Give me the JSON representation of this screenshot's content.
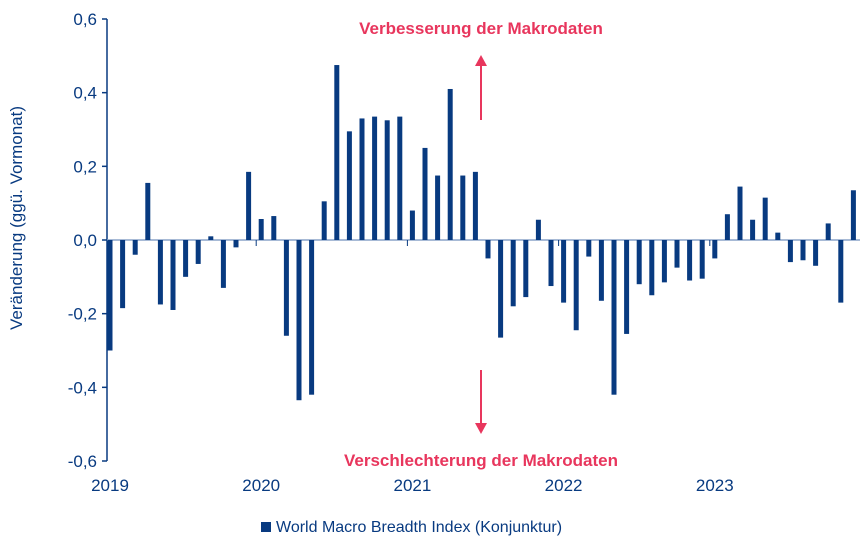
{
  "chart_data": {
    "type": "bar",
    "title": "",
    "ylabel": "Veränderung (ggü. Vormonat)",
    "xlabel": "",
    "ylim": [
      -0.6,
      0.6
    ],
    "yticks": [
      0.6,
      0.4,
      0.2,
      0.0,
      -0.2,
      -0.4,
      -0.6
    ],
    "ytick_labels": [
      "0,6",
      "0,4",
      "0,2",
      "0,0",
      "-0,2",
      "-0,4",
      "-0,6"
    ],
    "xtick_labels": [
      "2019",
      "2020",
      "2021",
      "2022",
      "2023"
    ],
    "start": "2019-01",
    "frequency": "monthly",
    "series": [
      {
        "name": "World Macro Breadth Index (Konjunktur)",
        "color": "#083a80",
        "values": [
          -0.3,
          -0.185,
          -0.04,
          0.155,
          -0.175,
          -0.19,
          -0.1,
          -0.065,
          0.01,
          -0.13,
          -0.02,
          0.185,
          0.057,
          0.065,
          -0.26,
          -0.435,
          -0.42,
          0.105,
          0.475,
          0.295,
          0.33,
          0.335,
          0.325,
          0.335,
          0.08,
          0.25,
          0.175,
          0.41,
          0.175,
          0.185,
          -0.05,
          -0.265,
          -0.18,
          -0.155,
          0.055,
          -0.125,
          -0.17,
          -0.245,
          -0.045,
          -0.165,
          -0.42,
          -0.255,
          -0.12,
          -0.15,
          -0.115,
          -0.075,
          -0.11,
          -0.105,
          -0.05,
          0.07,
          0.145,
          0.055,
          0.115,
          0.02,
          -0.06,
          -0.055,
          -0.07,
          0.045,
          -0.17,
          0.135
        ]
      }
    ],
    "annotations": [
      {
        "text": "Verbesserung der Makrodaten",
        "direction": "up",
        "color": "#e8365d"
      },
      {
        "text": "Verschlechterung der Makrodaten",
        "direction": "down",
        "color": "#e8365d"
      }
    ],
    "legend": "bottom-center",
    "grid": false
  }
}
